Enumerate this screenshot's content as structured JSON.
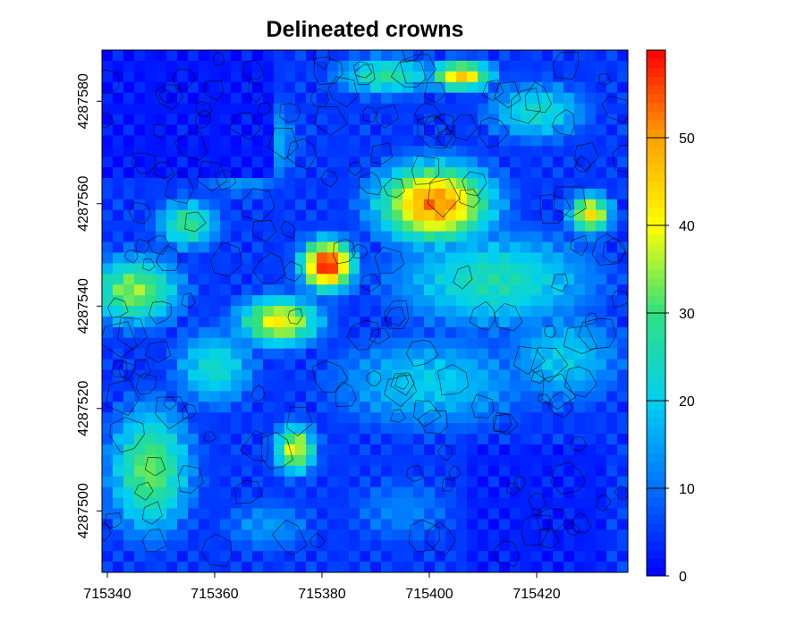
{
  "chart_data": {
    "type": "heatmap",
    "title": "Delineated crowns",
    "xlabel": "",
    "ylabel": "",
    "x_ticks": [
      "715340",
      "715360",
      "715380",
      "715400",
      "715420"
    ],
    "y_ticks": [
      "4287500",
      "4287520",
      "4287540",
      "4287560",
      "4287580"
    ],
    "xlim": [
      715339,
      715437
    ],
    "ylim": [
      4287488,
      4287590
    ],
    "colorbar": {
      "ticks": [
        "0",
        "10",
        "20",
        "30",
        "40",
        "50"
      ],
      "range": [
        0,
        60
      ],
      "colors": [
        "#0000ff",
        "#0070ff",
        "#00d0f0",
        "#30e080",
        "#ffff00",
        "#ffa000",
        "#ff0000"
      ]
    },
    "overlay": "crown polygon outlines (black)"
  }
}
